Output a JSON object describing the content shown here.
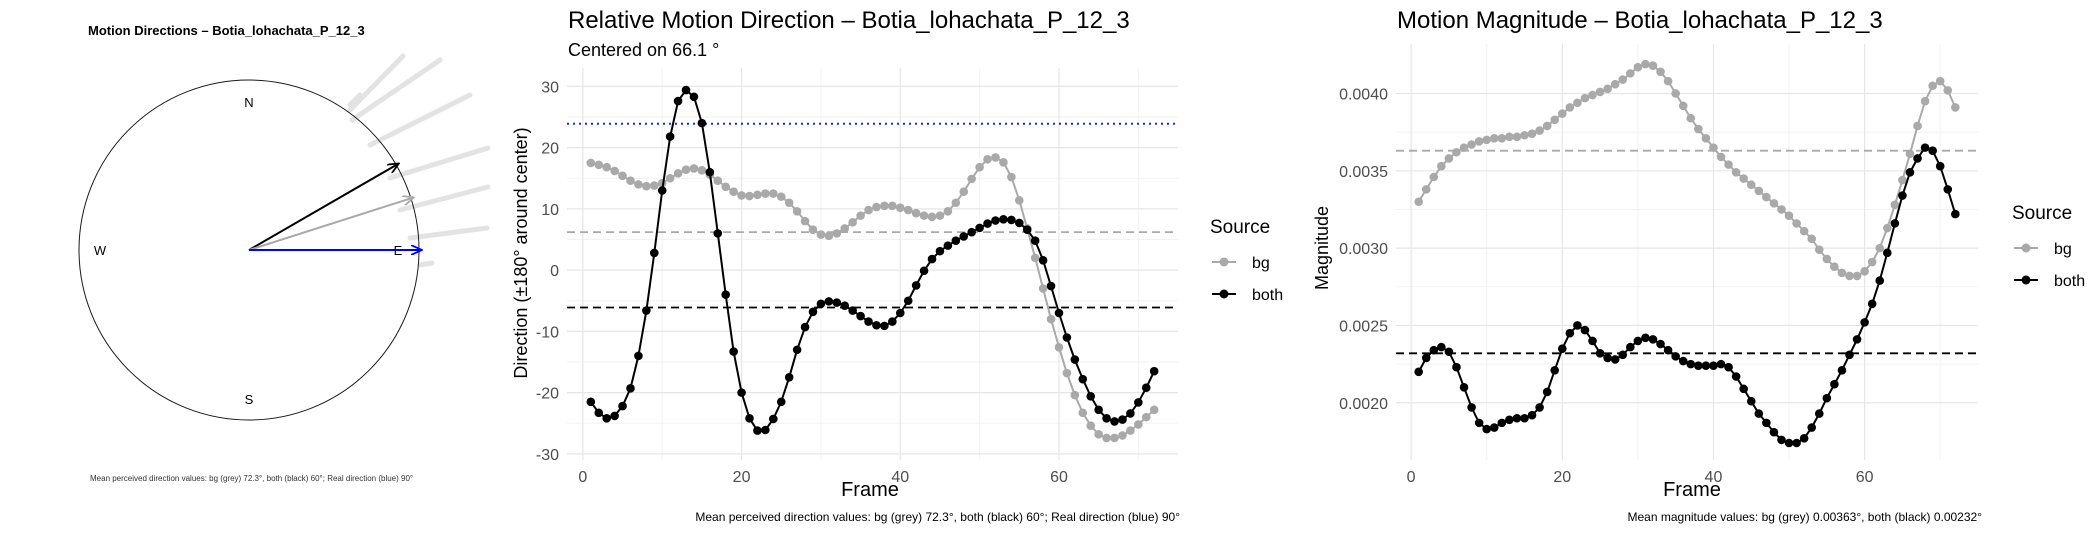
{
  "compass": {
    "title": "Motion Directions – Botia_lohachata_P_12_3",
    "labels": {
      "n": "N",
      "s": "S",
      "e": "E",
      "w": "W"
    },
    "arrows": [
      {
        "name": "both",
        "angle_deg": 60,
        "color": "#000000"
      },
      {
        "name": "bg",
        "angle_deg": 72.3,
        "color": "#a9a9a9"
      },
      {
        "name": "real",
        "angle_deg": 90,
        "color": "#0000ff"
      }
    ],
    "caption": "Mean perceived direction values: bg (grey) 72.3°, both (black) 60°; Real direction (blue) 90°"
  },
  "chart_data": [
    {
      "type": "line",
      "title": "Relative Motion Direction – Botia_lohachata_P_12_3",
      "subtitle": "Centered on  66.1 °",
      "xlabel": "Frame",
      "ylabel": "Direction (±180° around center)",
      "xlim": [
        -2,
        75
      ],
      "ylim": [
        -31,
        33
      ],
      "xticks": [
        0,
        20,
        40,
        60
      ],
      "yticks": [
        -30,
        -20,
        -10,
        0,
        10,
        20,
        30
      ],
      "grid": true,
      "legend": {
        "title": "Source",
        "position": "right",
        "entries": [
          "bg",
          "both"
        ]
      },
      "reference_lines": [
        {
          "name": "real",
          "y": 23.9,
          "style": "dotted",
          "color": "#1a2fc2"
        },
        {
          "name": "bg-mean",
          "y": 6.2,
          "style": "dashed",
          "color": "#a9a9a9"
        },
        {
          "name": "both-mean",
          "y": -6.1,
          "style": "dashed",
          "color": "#000000"
        }
      ],
      "series": [
        {
          "name": "bg",
          "color": "#a9a9a9",
          "x": [
            1,
            2,
            3,
            4,
            5,
            6,
            7,
            8,
            9,
            10,
            11,
            12,
            13,
            14,
            15,
            16,
            17,
            18,
            19,
            20,
            21,
            22,
            23,
            24,
            25,
            26,
            27,
            28,
            29,
            30,
            31,
            32,
            33,
            34,
            35,
            36,
            37,
            38,
            39,
            40,
            41,
            42,
            43,
            44,
            45,
            46,
            47,
            48,
            49,
            50,
            51,
            52,
            53,
            54,
            55,
            56,
            57,
            58,
            59,
            60,
            61,
            62,
            63,
            64,
            65,
            66,
            67,
            68,
            69,
            70,
            71,
            72
          ],
          "y": [
            17.5,
            17.2,
            16.8,
            16.2,
            15.4,
            14.6,
            14,
            13.7,
            13.8,
            14.2,
            15,
            15.8,
            16.4,
            16.6,
            16.3,
            15.6,
            14.6,
            13.6,
            12.8,
            12.2,
            12.1,
            12.3,
            12.5,
            12.5,
            12,
            11,
            9.6,
            8,
            6.6,
            5.8,
            5.6,
            6,
            6.8,
            7.8,
            8.9,
            9.8,
            10.3,
            10.5,
            10.5,
            10.2,
            9.8,
            9.3,
            8.9,
            8.7,
            8.9,
            9.6,
            11,
            12.8,
            14.9,
            16.8,
            18.1,
            18.4,
            17.6,
            15.2,
            11.4,
            6.8,
            2,
            -3,
            -8,
            -12.6,
            -16.8,
            -20.4,
            -23.3,
            -25.4,
            -26.8,
            -27.4,
            -27.4,
            -27,
            -26.2,
            -25.2,
            -24,
            -22.8
          ]
        },
        {
          "name": "both",
          "color": "#000000",
          "x": [
            1,
            2,
            3,
            4,
            5,
            6,
            7,
            8,
            9,
            10,
            11,
            12,
            13,
            14,
            15,
            16,
            17,
            18,
            19,
            20,
            21,
            22,
            23,
            24,
            25,
            26,
            27,
            28,
            29,
            30,
            31,
            32,
            33,
            34,
            35,
            36,
            37,
            38,
            39,
            40,
            41,
            42,
            43,
            44,
            45,
            46,
            47,
            48,
            49,
            50,
            51,
            52,
            53,
            54,
            55,
            56,
            57,
            58,
            59,
            60,
            61,
            62,
            63,
            64,
            65,
            66,
            67,
            68,
            69,
            70,
            71,
            72
          ],
          "y": [
            -21.5,
            -23.3,
            -24.2,
            -23.8,
            -22.2,
            -19.3,
            -14,
            -6.6,
            2.8,
            13,
            21.8,
            27.6,
            29.4,
            28.3,
            24,
            16,
            6,
            -4,
            -13.3,
            -20,
            -24.2,
            -26.2,
            -26.1,
            -24.3,
            -21.5,
            -17.5,
            -13,
            -9.3,
            -6.8,
            -5.5,
            -5.1,
            -5.3,
            -5.8,
            -6.6,
            -7.5,
            -8.4,
            -9,
            -9.1,
            -8.4,
            -7,
            -5,
            -2.5,
            -0.1,
            1.8,
            3.1,
            4,
            4.8,
            5.5,
            6.2,
            6.9,
            7.6,
            8.1,
            8.3,
            8.2,
            7.7,
            6.6,
            4.8,
            1.6,
            -2.6,
            -7,
            -11,
            -14.6,
            -17.8,
            -20.6,
            -22.8,
            -24.2,
            -24.7,
            -24.4,
            -23.4,
            -21.6,
            -19.2,
            -16.5
          ]
        }
      ],
      "caption": "Mean perceived direction values: bg (grey) 72.3°, both (black) 60°; Real direction (blue) 90°"
    },
    {
      "type": "line",
      "title": "Motion Magnitude – Botia_lohachata_P_12_3",
      "xlabel": "Frame",
      "ylabel": "Magnitude",
      "xlim": [
        -2,
        75
      ],
      "ylim": [
        0.00163,
        0.00432
      ],
      "xticks": [
        0,
        20,
        40,
        60
      ],
      "yticks": [
        0.002,
        0.0025,
        0.003,
        0.0035,
        0.004
      ],
      "ytick_labels": [
        "0.0020",
        "0.0025",
        "0.0030",
        "0.0035",
        "0.0040"
      ],
      "grid": true,
      "legend": {
        "title": "Source",
        "position": "right",
        "entries": [
          "bg",
          "both"
        ]
      },
      "reference_lines": [
        {
          "name": "bg-mean",
          "y": 0.00363,
          "style": "dashed",
          "color": "#a9a9a9"
        },
        {
          "name": "both-mean",
          "y": 0.00232,
          "style": "dashed",
          "color": "#000000"
        }
      ],
      "series": [
        {
          "name": "bg",
          "color": "#a9a9a9",
          "x": [
            1,
            2,
            3,
            4,
            5,
            6,
            7,
            8,
            9,
            10,
            11,
            12,
            13,
            14,
            15,
            16,
            17,
            18,
            19,
            20,
            21,
            22,
            23,
            24,
            25,
            26,
            27,
            28,
            29,
            30,
            31,
            32,
            33,
            34,
            35,
            36,
            37,
            38,
            39,
            40,
            41,
            42,
            43,
            44,
            45,
            46,
            47,
            48,
            49,
            50,
            51,
            52,
            53,
            54,
            55,
            56,
            57,
            58,
            59,
            60,
            61,
            62,
            63,
            64,
            65,
            66,
            67,
            68,
            69,
            70,
            71,
            72
          ],
          "y": [
            0.0033,
            0.00338,
            0.00346,
            0.00353,
            0.00358,
            0.00362,
            0.00365,
            0.00367,
            0.00369,
            0.0037,
            0.00371,
            0.00371,
            0.00372,
            0.00372,
            0.00373,
            0.00374,
            0.00376,
            0.00379,
            0.00383,
            0.00387,
            0.00391,
            0.00394,
            0.00397,
            0.00399,
            0.00401,
            0.00403,
            0.00406,
            0.00409,
            0.00413,
            0.00417,
            0.00419,
            0.00418,
            0.00414,
            0.00408,
            0.004,
            0.00392,
            0.00384,
            0.00377,
            0.00371,
            0.00365,
            0.00359,
            0.00354,
            0.00349,
            0.00345,
            0.00341,
            0.00337,
            0.00333,
            0.00329,
            0.00325,
            0.00321,
            0.00316,
            0.00311,
            0.00306,
            0.00299,
            0.00293,
            0.00288,
            0.00284,
            0.00282,
            0.00282,
            0.00285,
            0.00291,
            0.003,
            0.00313,
            0.00328,
            0.00344,
            0.00361,
            0.00379,
            0.00395,
            0.00405,
            0.00408,
            0.00402,
            0.00391
          ]
        },
        {
          "name": "both",
          "color": "#000000",
          "x": [
            1,
            2,
            3,
            4,
            5,
            6,
            7,
            8,
            9,
            10,
            11,
            12,
            13,
            14,
            15,
            16,
            17,
            18,
            19,
            20,
            21,
            22,
            23,
            24,
            25,
            26,
            27,
            28,
            29,
            30,
            31,
            32,
            33,
            34,
            35,
            36,
            37,
            38,
            39,
            40,
            41,
            42,
            43,
            44,
            45,
            46,
            47,
            48,
            49,
            50,
            51,
            52,
            53,
            54,
            55,
            56,
            57,
            58,
            59,
            60,
            61,
            62,
            63,
            64,
            65,
            66,
            67,
            68,
            69,
            70,
            71,
            72
          ],
          "y": [
            0.0022,
            0.00229,
            0.00234,
            0.00236,
            0.00233,
            0.00223,
            0.0021,
            0.00197,
            0.00187,
            0.00183,
            0.00184,
            0.00187,
            0.00189,
            0.0019,
            0.0019,
            0.00192,
            0.00197,
            0.00207,
            0.00221,
            0.00235,
            0.00245,
            0.0025,
            0.00247,
            0.0024,
            0.00232,
            0.00229,
            0.00228,
            0.00231,
            0.00236,
            0.0024,
            0.00242,
            0.00241,
            0.00238,
            0.00234,
            0.0023,
            0.00227,
            0.00225,
            0.00224,
            0.00224,
            0.00224,
            0.00225,
            0.00223,
            0.00217,
            0.00209,
            0.00201,
            0.00193,
            0.00187,
            0.00181,
            0.00176,
            0.00174,
            0.00174,
            0.00177,
            0.00184,
            0.00193,
            0.00203,
            0.00212,
            0.00221,
            0.00231,
            0.00241,
            0.00252,
            0.00264,
            0.00279,
            0.00297,
            0.00316,
            0.00334,
            0.00349,
            0.00358,
            0.00365,
            0.00363,
            0.00353,
            0.00338,
            0.00322
          ]
        }
      ],
      "caption": "Mean magnitude values: bg (grey) 0.00363°, both (black) 0.00232°"
    }
  ]
}
